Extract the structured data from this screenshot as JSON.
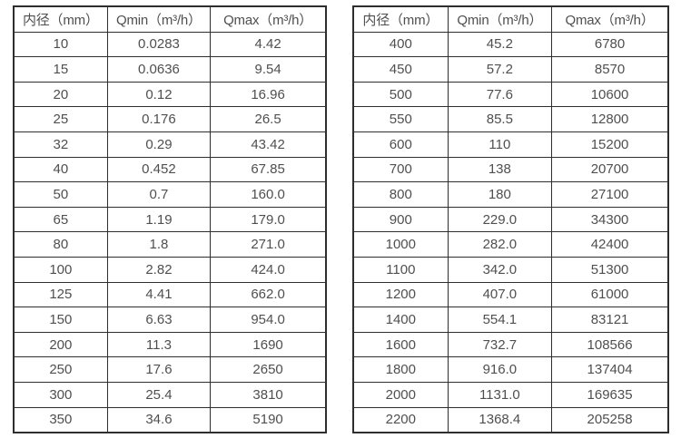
{
  "colors": {
    "background": "#ffffff",
    "border": "#2e2e2e",
    "text": "#4f4f4f"
  },
  "chart_data": [
    {
      "type": "table",
      "name": "flow-spec-table-small-diameters",
      "headers": [
        "内径（mm）",
        "Qmin（m³/h）",
        "Qmax（m³/h）"
      ],
      "rows": [
        [
          "10",
          "0.0283",
          "4.42"
        ],
        [
          "15",
          "0.0636",
          "9.54"
        ],
        [
          "20",
          "0.12",
          "16.96"
        ],
        [
          "25",
          "0.176",
          "26.5"
        ],
        [
          "32",
          "0.29",
          "43.42"
        ],
        [
          "40",
          "0.452",
          "67.85"
        ],
        [
          "50",
          "0.7",
          "160.0"
        ],
        [
          "65",
          "1.19",
          "179.0"
        ],
        [
          "80",
          "1.8",
          "271.0"
        ],
        [
          "100",
          "2.82",
          "424.0"
        ],
        [
          "125",
          "4.41",
          "662.0"
        ],
        [
          "150",
          "6.63",
          "954.0"
        ],
        [
          "200",
          "11.3",
          "1690"
        ],
        [
          "250",
          "17.6",
          "2650"
        ],
        [
          "300",
          "25.4",
          "3810"
        ],
        [
          "350",
          "34.6",
          "5190"
        ]
      ]
    },
    {
      "type": "table",
      "name": "flow-spec-table-large-diameters",
      "headers": [
        "内径（mm）",
        "Qmin（m³/h）",
        "Qmax（m³/h）"
      ],
      "rows": [
        [
          "400",
          "45.2",
          "6780"
        ],
        [
          "450",
          "57.2",
          "8570"
        ],
        [
          "500",
          "77.6",
          "10600"
        ],
        [
          "550",
          "85.5",
          "12800"
        ],
        [
          "600",
          "110",
          "15200"
        ],
        [
          "700",
          "138",
          "20700"
        ],
        [
          "800",
          "180",
          "27100"
        ],
        [
          "900",
          "229.0",
          "34300"
        ],
        [
          "1000",
          "282.0",
          "42400"
        ],
        [
          "1100",
          "342.0",
          "51300"
        ],
        [
          "1200",
          "407.0",
          "61000"
        ],
        [
          "1400",
          "554.1",
          "83121"
        ],
        [
          "1600",
          "732.7",
          "108566"
        ],
        [
          "1800",
          "916.0",
          "137404"
        ],
        [
          "2000",
          "1131.0",
          "169635"
        ],
        [
          "2200",
          "1368.4",
          "205258"
        ]
      ]
    }
  ]
}
